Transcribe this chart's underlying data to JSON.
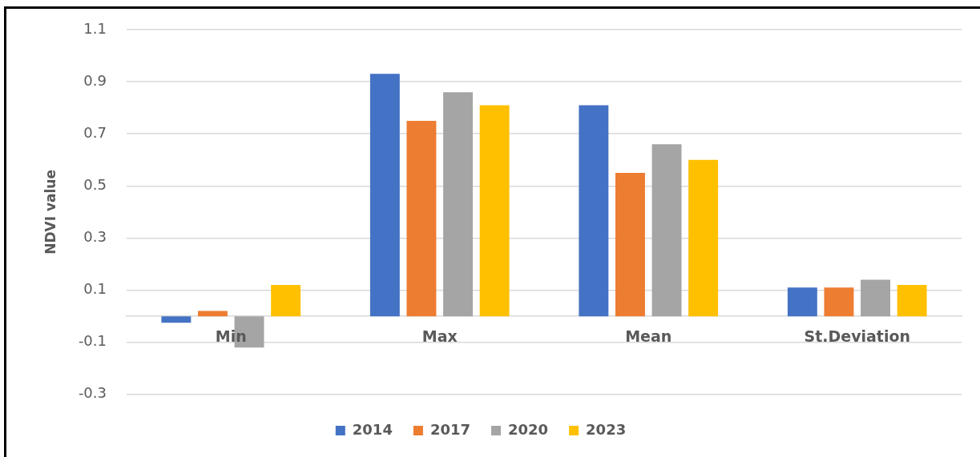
{
  "chart_data": {
    "type": "bar",
    "ylabel": "NDVI value",
    "categories": [
      "Min",
      "Max",
      "Mean",
      "St.Deviation"
    ],
    "series": [
      {
        "name": "2014",
        "color": "#4472c4",
        "values": [
          -0.025,
          0.93,
          0.81,
          0.11
        ]
      },
      {
        "name": "2017",
        "color": "#ed7d31",
        "values": [
          0.02,
          0.75,
          0.55,
          0.11
        ]
      },
      {
        "name": "2020",
        "color": "#a5a5a5",
        "values": [
          -0.12,
          0.86,
          0.66,
          0.14
        ]
      },
      {
        "name": "2023",
        "color": "#ffc000",
        "values": [
          0.12,
          0.81,
          0.6,
          0.12
        ]
      }
    ],
    "ylim": [
      -0.3,
      1.1
    ],
    "yticks": [
      -0.3,
      -0.1,
      0.1,
      0.3,
      0.5,
      0.7,
      0.9,
      1.1
    ],
    "grid": "y",
    "legend": "bottom"
  }
}
